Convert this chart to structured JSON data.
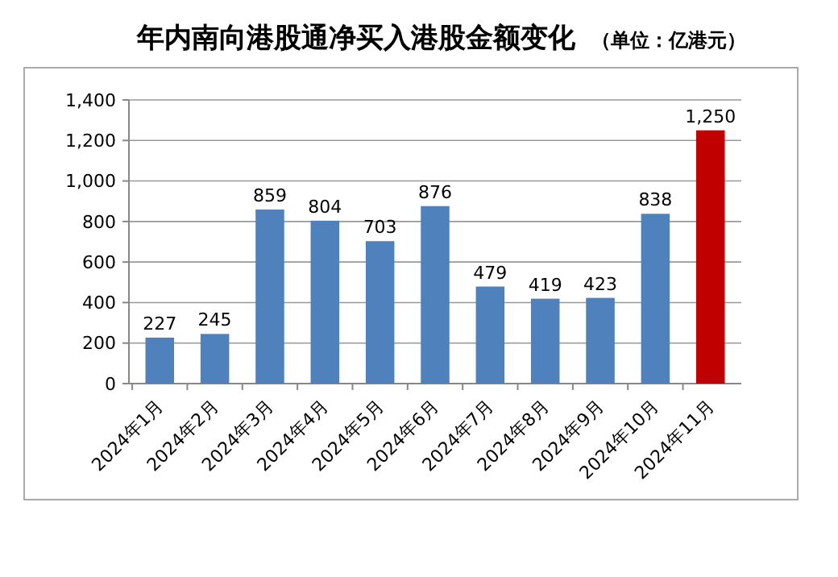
{
  "chart_data": {
    "type": "bar",
    "title": "年内南向港股通净买入港股金额变化",
    "subtitle": "（单位：亿港元）",
    "categories": [
      "2024年1月",
      "2024年2月",
      "2024年3月",
      "2024年4月",
      "2024年5月",
      "2024年6月",
      "2024年7月",
      "2024年8月",
      "2024年9月",
      "2024年10月",
      "2024年11月"
    ],
    "values": [
      227,
      245,
      859,
      804,
      703,
      876,
      479,
      419,
      423,
      838,
      1250
    ],
    "colors": [
      "#4f81bd",
      "#4f81bd",
      "#4f81bd",
      "#4f81bd",
      "#4f81bd",
      "#4f81bd",
      "#4f81bd",
      "#4f81bd",
      "#4f81bd",
      "#4f81bd",
      "#c00000"
    ],
    "value_labels": [
      "227",
      "245",
      "859",
      "804",
      "703",
      "876",
      "479",
      "419",
      "423",
      "838",
      "1,250"
    ],
    "ylim": [
      0,
      1400
    ],
    "yticks": [
      {
        "value": 0,
        "label": "0"
      },
      {
        "value": 200,
        "label": "200"
      },
      {
        "value": 400,
        "label": "400"
      },
      {
        "value": 600,
        "label": "600"
      },
      {
        "value": 800,
        "label": "800"
      },
      {
        "value": 1000,
        "label": "1,000"
      },
      {
        "value": 1200,
        "label": "1,200"
      },
      {
        "value": 1400,
        "label": "1,400"
      }
    ],
    "grid": "y"
  }
}
